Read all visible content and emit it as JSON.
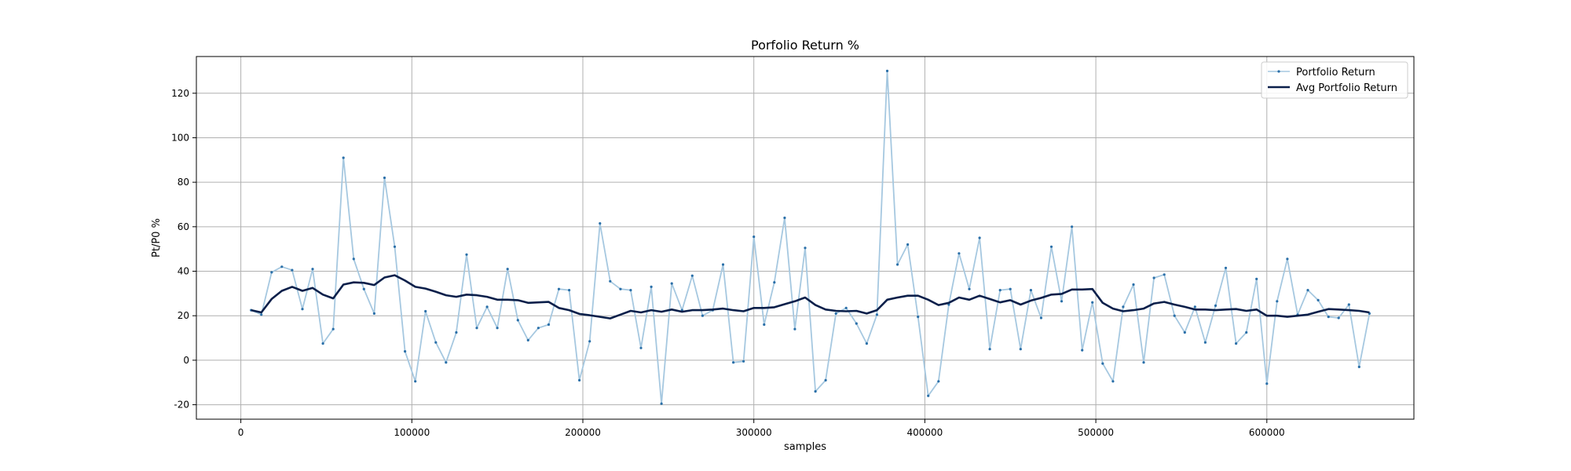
{
  "chart_data": {
    "type": "line",
    "title": "Porfolio Return %",
    "xlabel": "samples",
    "ylabel": "Pt/P0 %",
    "xlim": [
      -26000,
      686000
    ],
    "ylim": [
      -26.5,
      136.5
    ],
    "xticks": [
      0,
      100000,
      200000,
      300000,
      400000,
      500000,
      600000
    ],
    "yticks": [
      -20,
      0,
      20,
      40,
      60,
      80,
      100,
      120
    ],
    "grid": true,
    "legend_position": "top-right",
    "colors": {
      "portfolio": "#a6c8e0",
      "portfolio_marker": "#2a6fa8",
      "avg": "#0a1f4a",
      "grid": "#b0b0b0",
      "frame": "#000000"
    },
    "series": [
      {
        "name": "Portfolio Return",
        "x": [
          6000,
          12000,
          18000,
          24000,
          30000,
          36000,
          42000,
          48000,
          54000,
          60000,
          66000,
          72000,
          78000,
          84000,
          90000,
          96000,
          102000,
          108000,
          114000,
          120000,
          126000,
          132000,
          138000,
          144000,
          150000,
          156000,
          162000,
          168000,
          174000,
          180000,
          186000,
          192000,
          198000,
          204000,
          210000,
          216000,
          222000,
          228000,
          234000,
          240000,
          246000,
          252000,
          258000,
          264000,
          270000,
          276000,
          282000,
          288000,
          294000,
          300000,
          306000,
          312000,
          318000,
          324000,
          330000,
          336000,
          342000,
          348000,
          354000,
          360000,
          366000,
          372000,
          378000,
          384000,
          390000,
          396000,
          402000,
          408000,
          414000,
          420000,
          426000,
          432000,
          438000,
          444000,
          450000,
          456000,
          462000,
          468000,
          474000,
          480000,
          486000,
          492000,
          498000,
          504000,
          510000,
          516000,
          522000,
          528000,
          534000,
          540000,
          546000,
          552000,
          558000,
          564000,
          570000,
          576000,
          582000,
          588000,
          594000,
          600000,
          606000,
          612000,
          618000,
          624000,
          630000,
          636000,
          642000,
          648000,
          654000,
          660000
        ],
        "values": [
          22.5,
          20.5,
          39.5,
          42,
          40.5,
          23,
          41,
          7.5,
          14,
          91,
          45.5,
          32,
          21,
          82,
          51,
          4,
          -9.5,
          22,
          8,
          -1,
          12.5,
          47.5,
          14.5,
          24,
          14.5,
          41,
          18,
          9,
          14.5,
          16,
          32,
          31.5,
          -9,
          8.5,
          61.5,
          35.5,
          32,
          31.5,
          5.5,
          33,
          -19.5,
          34.5,
          22.5,
          38,
          20,
          22.5,
          43,
          -1,
          -0.5,
          55.5,
          16,
          35,
          64,
          14,
          50.5,
          -14,
          -9,
          21,
          23.5,
          16.5,
          7.5,
          20.5,
          130,
          43,
          52,
          19.5,
          -16,
          -9.5,
          25,
          48,
          32,
          55,
          5,
          31.5,
          32,
          5,
          31.5,
          19,
          51,
          26.5,
          60,
          4.5,
          26,
          -1.5,
          -9.5,
          24,
          34,
          -1,
          37,
          38.5,
          20,
          12.5,
          24,
          8,
          24.5,
          41.5,
          7.5,
          12.5,
          36.5,
          -10.5,
          26.5,
          45.5,
          20.5,
          31.5,
          27,
          19.5,
          19,
          25,
          -3,
          21
        ]
      },
      {
        "name": "Avg Portfolio Return",
        "x": [
          6000,
          12000,
          18000,
          24000,
          30000,
          36000,
          42000,
          48000,
          54000,
          60000,
          66000,
          72000,
          78000,
          84000,
          90000,
          96000,
          102000,
          108000,
          114000,
          120000,
          126000,
          132000,
          138000,
          144000,
          150000,
          156000,
          162000,
          168000,
          174000,
          180000,
          186000,
          192000,
          198000,
          204000,
          210000,
          216000,
          222000,
          228000,
          234000,
          240000,
          246000,
          252000,
          258000,
          264000,
          270000,
          276000,
          282000,
          288000,
          294000,
          300000,
          306000,
          312000,
          318000,
          324000,
          330000,
          336000,
          342000,
          348000,
          354000,
          360000,
          366000,
          372000,
          378000,
          384000,
          390000,
          396000,
          402000,
          408000,
          414000,
          420000,
          426000,
          432000,
          438000,
          444000,
          450000,
          456000,
          462000,
          468000,
          474000,
          480000,
          486000,
          492000,
          498000,
          504000,
          510000,
          516000,
          522000,
          528000,
          534000,
          540000,
          546000,
          552000,
          558000,
          564000,
          570000,
          576000,
          582000,
          588000,
          594000,
          600000,
          606000,
          612000,
          618000,
          624000,
          630000,
          636000,
          642000,
          648000,
          654000,
          660000
        ],
        "values": [
          22.5,
          21.5,
          27.5,
          31.2,
          33,
          31.2,
          32.5,
          29.5,
          27.8,
          34,
          35,
          34.8,
          33.8,
          37.2,
          38.2,
          35.8,
          33,
          32.2,
          30.8,
          29.2,
          28.5,
          29.5,
          29.2,
          28.5,
          27.2,
          27.2,
          27,
          25.8,
          26,
          26.2,
          23.5,
          22.5,
          20.8,
          20.2,
          19.5,
          18.8,
          20.5,
          22.2,
          21.5,
          22.5,
          21.8,
          22.8,
          21.8,
          22.5,
          22.5,
          22.8,
          23.2,
          22.5,
          22,
          23.5,
          23.5,
          23.8,
          25.2,
          26.5,
          28.2,
          24.8,
          22.8,
          22.2,
          22,
          22.2,
          21,
          22.5,
          27.2,
          28.2,
          29,
          29,
          27.2,
          24.8,
          25.8,
          28.2,
          27.2,
          29,
          27.5,
          26,
          27,
          25,
          26.8,
          28,
          29.5,
          29.8,
          31.8,
          31.8,
          32,
          25.8,
          23.2,
          22,
          22.5,
          23.2,
          25.5,
          26.2,
          25,
          24,
          22.8,
          22.8,
          22.5,
          22.8,
          23,
          22.2,
          22.8,
          20,
          20,
          19.5,
          20,
          20.5,
          21.8,
          23,
          22.8,
          22.5,
          22.2,
          21.5
        ]
      }
    ]
  }
}
